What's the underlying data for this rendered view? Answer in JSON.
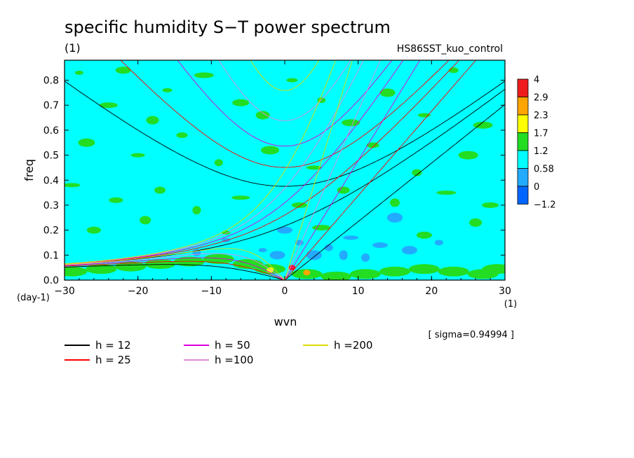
{
  "chart_data": {
    "type": "heatmap",
    "title": "specific humidity S−T power spectrum",
    "subtitle_left": "(1)",
    "subtitle_right": "HS86SST_kuo_control",
    "xlabel": "wvn",
    "ylabel": "freq",
    "x_unit_label": "(1)",
    "y_unit_label": "(day-1)",
    "xlim": [
      -30,
      30
    ],
    "ylim": [
      0.0,
      0.88
    ],
    "x_ticks": [
      -30,
      -20,
      -10,
      0,
      10,
      20,
      30
    ],
    "x_tick_labels": [
      "−30",
      "−20",
      "−10",
      "0",
      "10",
      "20",
      "30"
    ],
    "y_ticks": [
      0.0,
      0.1,
      0.2,
      0.3,
      0.4,
      0.5,
      0.6,
      0.7,
      0.8
    ],
    "y_tick_labels": [
      "0.0",
      "0.1",
      "0.2",
      "0.3",
      "0.4",
      "0.5",
      "0.6",
      "0.7",
      "0.8"
    ],
    "colorbar": {
      "labels": [
        "4",
        "2.9",
        "2.3",
        "1.7",
        "1.2",
        "0.58",
        "0",
        "−1.2"
      ],
      "colors": [
        "#ee1c1c",
        "#ffa500",
        "#ffff00",
        "#22dd22",
        "#00ffff",
        "#22aaff",
        "#0066ff"
      ]
    },
    "background_level_color": "#00ffff",
    "annotation": "[ sigma=0.94994 ]",
    "dispersion_curves": [
      {
        "h": 12,
        "label": "h = 12",
        "color": "#000000"
      },
      {
        "h": 25,
        "label": "h = 25",
        "color": "#ff0000"
      },
      {
        "h": 50,
        "label": "h = 50",
        "color": "#dd00dd"
      },
      {
        "h": 100,
        "label": "h =100",
        "color": "#dd88dd"
      },
      {
        "h": 200,
        "label": "h =200",
        "color": "#dddd00"
      }
    ],
    "green_patches": [
      [
        -28,
        0.83
      ],
      [
        -24,
        0.7
      ],
      [
        -22,
        0.84
      ],
      [
        -18,
        0.64
      ],
      [
        -16,
        0.76
      ],
      [
        -11,
        0.82
      ],
      [
        -6,
        0.71
      ],
      [
        -3,
        0.66
      ],
      [
        1,
        0.8
      ],
      [
        5,
        0.72
      ],
      [
        9,
        0.63
      ],
      [
        14,
        0.75
      ],
      [
        19,
        0.66
      ],
      [
        23,
        0.84
      ],
      [
        27,
        0.62
      ],
      [
        -27,
        0.55
      ],
      [
        -20,
        0.5
      ],
      [
        -14,
        0.58
      ],
      [
        -9,
        0.47
      ],
      [
        -2,
        0.52
      ],
      [
        4,
        0.45
      ],
      [
        12,
        0.54
      ],
      [
        18,
        0.43
      ],
      [
        25,
        0.5
      ],
      [
        -29,
        0.38
      ],
      [
        -23,
        0.32
      ],
      [
        -17,
        0.36
      ],
      [
        -12,
        0.28
      ],
      [
        -6,
        0.33
      ],
      [
        2,
        0.3
      ],
      [
        8,
        0.36
      ],
      [
        15,
        0.31
      ],
      [
        22,
        0.35
      ],
      [
        28,
        0.3
      ],
      [
        -26,
        0.2
      ],
      [
        -19,
        0.24
      ],
      [
        -8,
        0.19
      ],
      [
        5,
        0.21
      ],
      [
        19,
        0.18
      ],
      [
        26,
        0.23
      ]
    ],
    "blue_patches": [
      [
        -3,
        0.12
      ],
      [
        -1,
        0.1
      ],
      [
        2,
        0.15
      ],
      [
        4,
        0.1
      ],
      [
        6,
        0.13
      ],
      [
        9,
        0.17
      ],
      [
        11,
        0.09
      ],
      [
        13,
        0.14
      ],
      [
        8,
        0.1
      ],
      [
        0,
        0.2
      ],
      [
        -8,
        0.16
      ],
      [
        17,
        0.12
      ],
      [
        21,
        0.15
      ],
      [
        15,
        0.25
      ],
      [
        -12,
        0.11
      ]
    ],
    "low_freq_green_band": [
      [
        -29,
        0.04
      ],
      [
        -25,
        0.05
      ],
      [
        -21,
        0.06
      ],
      [
        -17,
        0.07
      ],
      [
        -13,
        0.08
      ],
      [
        -9,
        0.09
      ],
      [
        -5,
        0.07
      ],
      [
        -2,
        0.05
      ],
      [
        3,
        0.03
      ],
      [
        7,
        0.02
      ],
      [
        11,
        0.03
      ],
      [
        15,
        0.04
      ],
      [
        19,
        0.05
      ],
      [
        23,
        0.04
      ],
      [
        27,
        0.03
      ],
      [
        29,
        0.05
      ]
    ],
    "hotspots": [
      {
        "x": 1,
        "y": 0.05,
        "color": "#ee1c1c"
      },
      {
        "x": -2,
        "y": 0.04,
        "color": "#ffff00"
      },
      {
        "x": 3,
        "y": 0.03,
        "color": "#ffa500"
      }
    ]
  }
}
